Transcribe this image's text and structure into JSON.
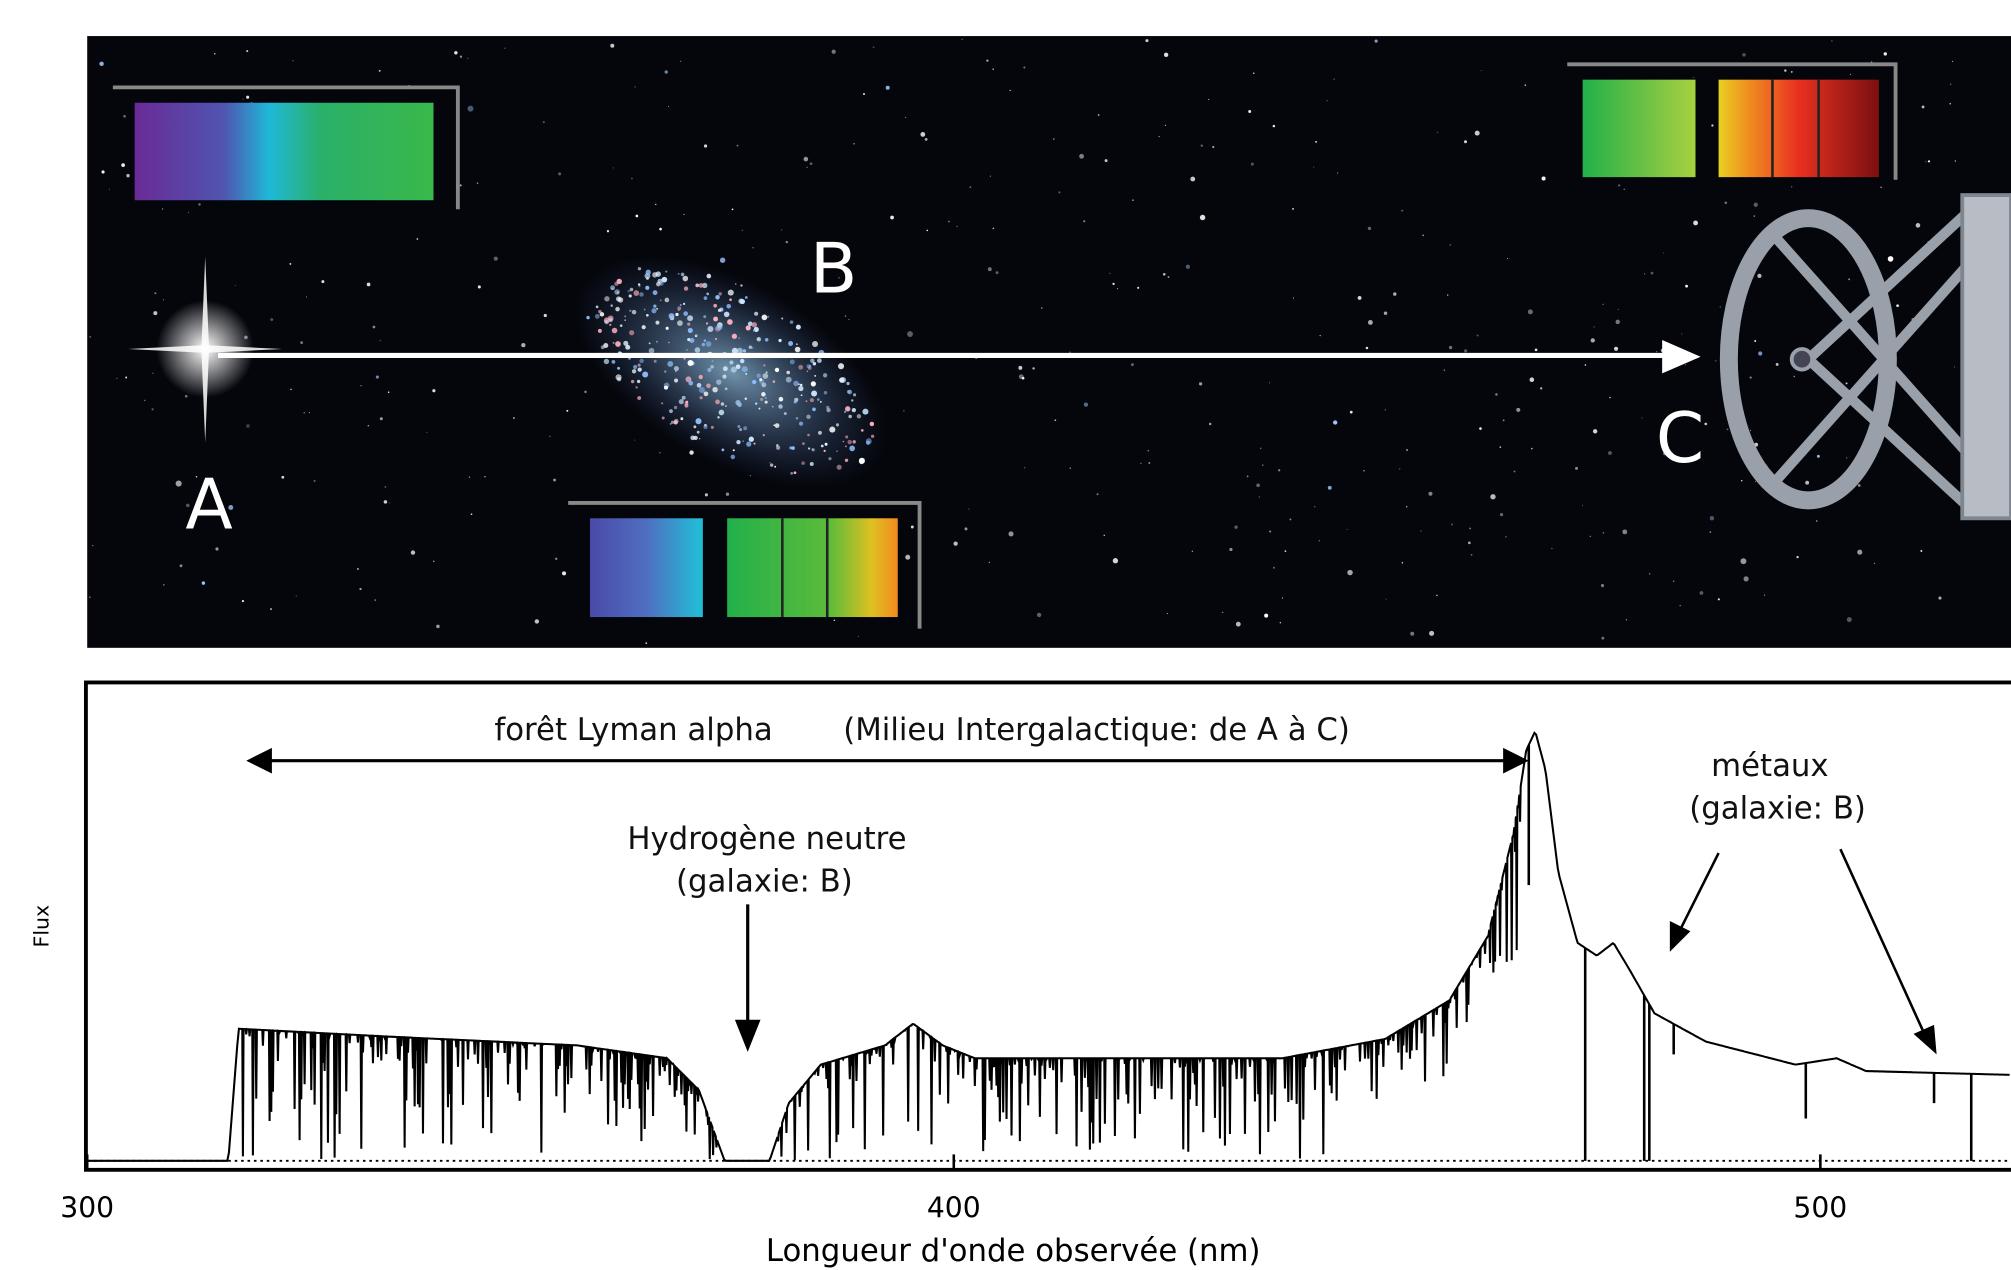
{
  "scene": {
    "labels": {
      "a": "A",
      "b": "B",
      "c": "C"
    }
  },
  "spectrum": {
    "xlim": [
      300,
      522
    ],
    "xticks": [
      300,
      400,
      500
    ],
    "x_label": "Longueur d'onde observée (nm)",
    "y_label": "Flux",
    "annotations": {
      "forest": [
        "forêt Lyman alpha",
        "(Milieu Intergalactique: de A à C)"
      ],
      "hydrogen": [
        "Hydrogène neutre",
        "(galaxie: B)"
      ],
      "metals": [
        "métaux",
        "(galaxie: B)"
      ]
    }
  }
}
